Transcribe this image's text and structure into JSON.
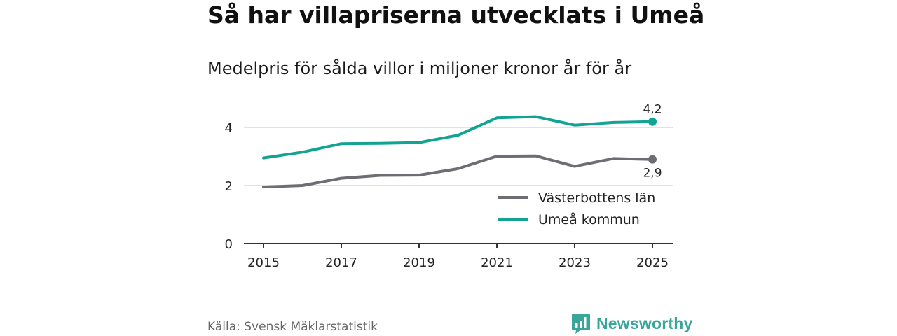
{
  "header": {
    "title": "Så har villapriserna utvecklats i Umeå",
    "subtitle": "Medelpris för sålda villor i miljoner kronor år för år"
  },
  "footer": {
    "source": "Källa: Svensk Mäklarstatistik",
    "brand": "Newsworthy",
    "brand_icon": "bar-chart-bubble-icon"
  },
  "colors": {
    "umea": "#12a393",
    "vasterbotten": "#6e6d73",
    "grid": "#d9d9d9",
    "axis": "#333333",
    "brand": "#3aa59b"
  },
  "chart_data": {
    "type": "line",
    "title": "Så har villapriserna utvecklats i Umeå",
    "subtitle": "Medelpris för sålda villor i miljoner kronor år för år",
    "xlabel": "",
    "ylabel": "",
    "x": [
      2015,
      2016,
      2017,
      2018,
      2019,
      2020,
      2021,
      2022,
      2023,
      2024,
      2025
    ],
    "x_ticks": [
      "2015",
      "2017",
      "2019",
      "2021",
      "2023",
      "2025"
    ],
    "y_ticks": [
      "0",
      "2",
      "4"
    ],
    "ylim": [
      0,
      4.2
    ],
    "grid": "horizontal",
    "legend_position": "bottom-right",
    "series": [
      {
        "name": "Västerbottens län",
        "color": "#6e6d73",
        "values": [
          1.95,
          2.0,
          2.25,
          2.35,
          2.36,
          2.58,
          3.01,
          3.02,
          2.66,
          2.93,
          2.9
        ],
        "end_label": "2,9"
      },
      {
        "name": "Umeå kommun",
        "color": "#12a393",
        "values": [
          2.95,
          3.15,
          3.44,
          3.45,
          3.48,
          3.73,
          4.33,
          4.37,
          4.08,
          4.17,
          4.2
        ],
        "end_label": "4,2"
      }
    ]
  }
}
